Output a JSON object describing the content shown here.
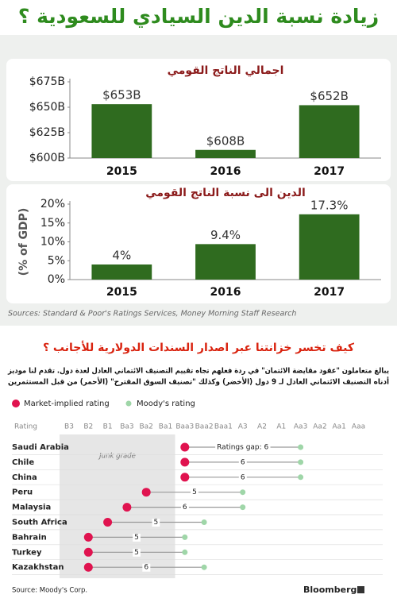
{
  "title": "زيادة نسبة الدين السيادي للسعودية ؟",
  "chart_data": [
    {
      "type": "bar",
      "title": "اجمالي الناتج القومي",
      "categories": [
        "2015",
        "2016",
        "2017"
      ],
      "values": [
        653,
        608,
        652
      ],
      "value_labels": [
        "$653B",
        "$608B",
        "$652B"
      ],
      "color": "#2f6b1f",
      "ylim": [
        600,
        675
      ],
      "yticks": [
        {
          "value": 600,
          "label": "$600B"
        },
        {
          "value": 625,
          "label": "$625B"
        },
        {
          "value": 650,
          "label": "$650B"
        },
        {
          "value": 675,
          "label": "$675B"
        }
      ],
      "grid": false
    },
    {
      "type": "bar",
      "title": "الدين الى نسبة الناتج القومي",
      "y_label": "(% of GDP)",
      "categories": [
        "2015",
        "2016",
        "2017"
      ],
      "values": [
        4,
        9.4,
        17.3
      ],
      "value_labels": [
        "4%",
        "9.4%",
        "17.3%"
      ],
      "color": "#2f6b1f",
      "ylim": [
        0,
        20
      ],
      "yticks": [
        {
          "value": 0,
          "label": "0%"
        },
        {
          "value": 5,
          "label": "5%"
        },
        {
          "value": 10,
          "label": "10%"
        },
        {
          "value": 15,
          "label": "15%"
        },
        {
          "value": 20,
          "label": "20%"
        }
      ],
      "grid": false,
      "source": "Sources: Standard & Poor's Ratings Services, Money Morning Staff Research"
    },
    {
      "type": "dumbbell",
      "title": "كيف تخسر خزانتنا عبر اصدار السندات الدولارية للأجانب ؟",
      "subtitle": [
        "يبالغ متعاملون \"عقود مقايضة الائتمان\" في ردة فعلهم تجاه تقييم التصنيف الائتماني العادل لعدة دول. تقدم لنا موديز",
        "أدناه التصنيف الائتماني العادل لـ 9 دول (الأخضر) وكذلك \"تصنيف السوق المقترح\" (الأحمر) من قبل المستثمرين"
      ],
      "scale_label": "Rating",
      "scale": [
        "B3",
        "B2",
        "B1",
        "Ba3",
        "Ba2",
        "Ba1",
        "Baa3",
        "Baa2",
        "Baa1",
        "A3",
        "A2",
        "A1",
        "Aa3",
        "Aa2",
        "Aa1",
        "Aaa"
      ],
      "annotation": "Junk grade",
      "categories": [
        "Saudi Arabia",
        "Chile",
        "China",
        "Peru",
        "Malaysia",
        "South Africa",
        "Bahrain",
        "Turkey",
        "Kazakhstan"
      ],
      "series": [
        {
          "name": "Market-implied rating",
          "color": "#e0134f",
          "values": [
            "Baa3",
            "Baa3",
            "Baa3",
            "Ba2",
            "Ba3",
            "B1",
            "B2",
            "B2",
            "B2"
          ]
        },
        {
          "name": "Moody's rating",
          "color": "#9fd6a8",
          "values": [
            "Aa3",
            "Aa3",
            "Aa3",
            "A3",
            "A3",
            "Baa2",
            "Baa3",
            "Baa3",
            "Baa2"
          ]
        }
      ],
      "gaps": [
        6,
        6,
        6,
        5,
        6,
        5,
        5,
        5,
        6
      ],
      "gap_labels": [
        "Ratings gap: 6",
        "6",
        "6",
        "5",
        "6",
        "5",
        "5",
        "5",
        "6"
      ],
      "source": "Source: Moody's Corp.",
      "brand": "Bloomberg"
    }
  ]
}
